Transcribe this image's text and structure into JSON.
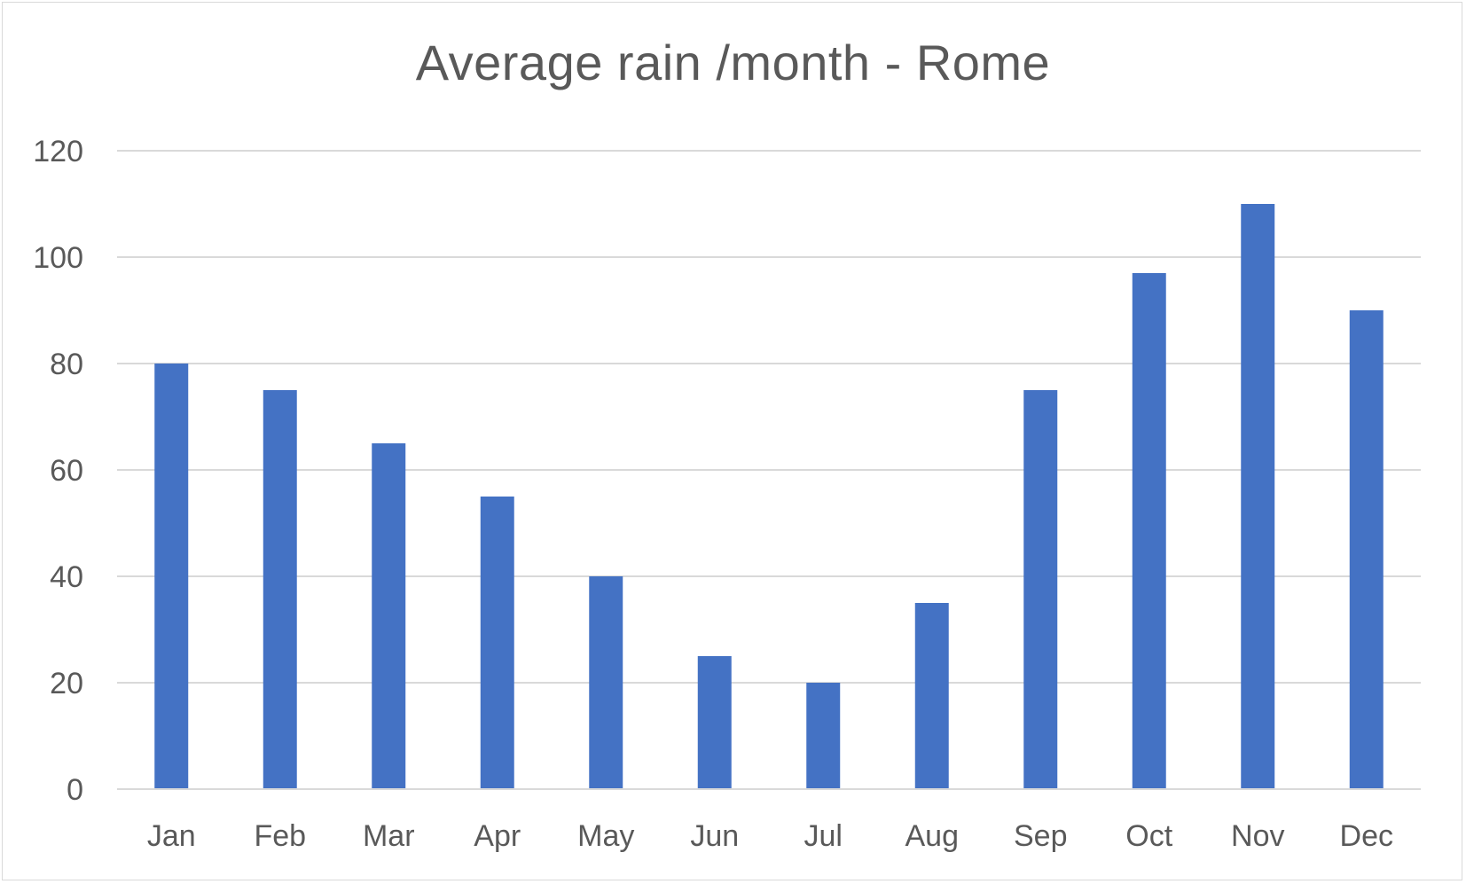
{
  "chart_data": {
    "type": "bar",
    "title": "Average rain /month - Rome",
    "xlabel": "",
    "ylabel": "",
    "categories": [
      "Jan",
      "Feb",
      "Mar",
      "Apr",
      "May",
      "Jun",
      "Jul",
      "Aug",
      "Sep",
      "Oct",
      "Nov",
      "Dec"
    ],
    "series": [
      {
        "values": [
          80,
          75,
          65,
          55,
          40,
          25,
          20,
          35,
          75,
          97,
          110,
          90
        ],
        "color": "#4472c4"
      }
    ],
    "ylim": [
      0,
      120
    ],
    "yticks": [
      0,
      20,
      40,
      60,
      80,
      100,
      120
    ],
    "grid": true,
    "legend": "none"
  }
}
